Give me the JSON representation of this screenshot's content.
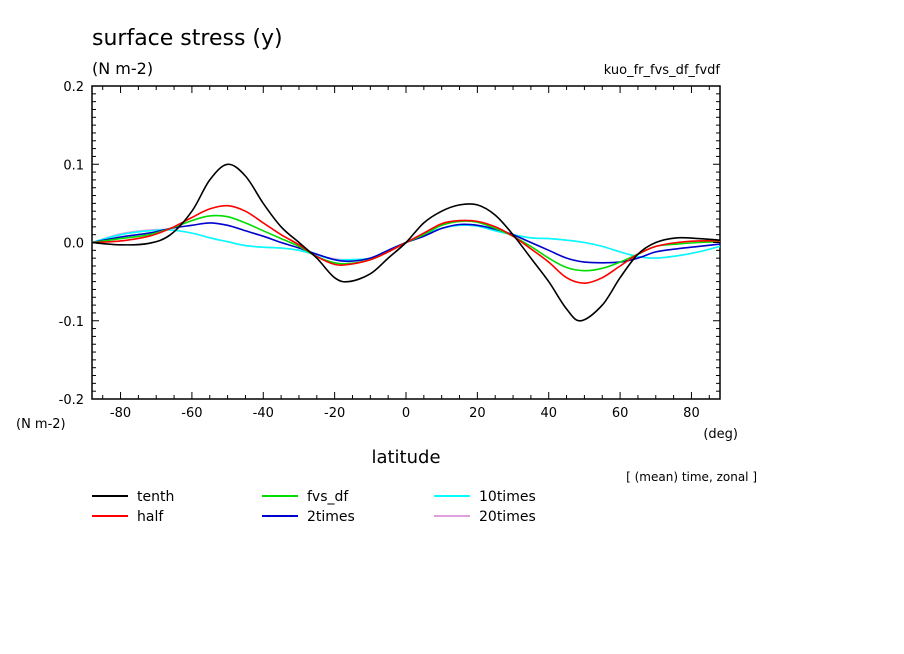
{
  "chart_data": {
    "type": "line",
    "title": "surface stress (y)",
    "units_label": "(N m-2)",
    "ylabel": "(N m-2)",
    "experiment": "kuo_fr_fvs_df_fvdf",
    "xlabel": "latitude",
    "xunits": "(deg)",
    "note": "[ (mean) time, zonal ]",
    "xlim": [
      -88,
      88
    ],
    "ylim": [
      -0.2,
      0.2
    ],
    "xticks": [
      -80,
      -60,
      -40,
      -20,
      0,
      20,
      40,
      60,
      80
    ],
    "yticks": [
      -0.2,
      -0.1,
      0.0,
      0.1,
      0.2
    ],
    "ytick_labels": [
      "-0.2",
      "-0.1",
      "0.0",
      "0.1",
      "0.2"
    ],
    "grid": false,
    "legend_position": "bottom",
    "series": [
      {
        "name": "tenth",
        "color": "#000000",
        "x": [
          -88,
          -80,
          -72,
          -66,
          -60,
          -55,
          -50,
          -45,
          -40,
          -35,
          -30,
          -25,
          -20,
          -16,
          -10,
          -5,
          0,
          5,
          10,
          15,
          20,
          25,
          30,
          35,
          40,
          45,
          49,
          55,
          60,
          65,
          70,
          76,
          82,
          88
        ],
        "y": [
          0.0,
          -0.003,
          -0.001,
          0.01,
          0.04,
          0.08,
          0.1,
          0.085,
          0.05,
          0.02,
          0.0,
          -0.02,
          -0.045,
          -0.05,
          -0.04,
          -0.02,
          0.0,
          0.025,
          0.04,
          0.048,
          0.048,
          0.035,
          0.01,
          -0.02,
          -0.05,
          -0.085,
          -0.1,
          -0.08,
          -0.045,
          -0.015,
          0.0,
          0.006,
          0.005,
          0.003
        ]
      },
      {
        "name": "half",
        "color": "#ff0000",
        "x": [
          -88,
          -80,
          -72,
          -66,
          -60,
          -55,
          -50,
          -45,
          -40,
          -35,
          -30,
          -25,
          -20,
          -16,
          -10,
          -5,
          0,
          5,
          10,
          15,
          20,
          25,
          30,
          35,
          40,
          45,
          50,
          55,
          60,
          65,
          70,
          76,
          82,
          88
        ],
        "y": [
          0.0,
          0.002,
          0.008,
          0.018,
          0.032,
          0.043,
          0.047,
          0.04,
          0.025,
          0.01,
          -0.003,
          -0.018,
          -0.028,
          -0.028,
          -0.022,
          -0.012,
          0.0,
          0.012,
          0.024,
          0.028,
          0.027,
          0.02,
          0.008,
          -0.008,
          -0.025,
          -0.045,
          -0.052,
          -0.045,
          -0.03,
          -0.015,
          -0.005,
          0.0,
          0.002,
          0.002
        ]
      },
      {
        "name": "fvs_df",
        "color": "#00dd00",
        "x": [
          -88,
          -80,
          -72,
          -66,
          -60,
          -55,
          -50,
          -45,
          -40,
          -35,
          -30,
          -25,
          -20,
          -16,
          -10,
          -5,
          0,
          5,
          10,
          15,
          20,
          25,
          30,
          35,
          40,
          45,
          50,
          55,
          60,
          65,
          70,
          76,
          82,
          88
        ],
        "y": [
          0.0,
          0.005,
          0.01,
          0.018,
          0.028,
          0.034,
          0.033,
          0.025,
          0.015,
          0.005,
          -0.005,
          -0.018,
          -0.026,
          -0.027,
          -0.022,
          -0.012,
          0.0,
          0.01,
          0.022,
          0.027,
          0.026,
          0.018,
          0.008,
          -0.005,
          -0.02,
          -0.032,
          -0.036,
          -0.033,
          -0.025,
          -0.015,
          -0.005,
          -0.002,
          0.0,
          0.001
        ]
      },
      {
        "name": "2times",
        "color": "#0000cc",
        "x": [
          -88,
          -80,
          -72,
          -66,
          -60,
          -55,
          -50,
          -45,
          -40,
          -35,
          -30,
          -25,
          -20,
          -16,
          -10,
          -5,
          0,
          5,
          10,
          15,
          20,
          25,
          30,
          35,
          40,
          45,
          50,
          55,
          60,
          65,
          70,
          76,
          82,
          88
        ],
        "y": [
          0.0,
          0.007,
          0.012,
          0.018,
          0.022,
          0.025,
          0.022,
          0.015,
          0.008,
          0.0,
          -0.007,
          -0.015,
          -0.022,
          -0.024,
          -0.02,
          -0.01,
          0.0,
          0.008,
          0.018,
          0.023,
          0.022,
          0.017,
          0.01,
          0.0,
          -0.01,
          -0.02,
          -0.025,
          -0.026,
          -0.025,
          -0.02,
          -0.012,
          -0.008,
          -0.005,
          -0.002
        ]
      },
      {
        "name": "10times",
        "color": "#00ffff",
        "x": [
          -88,
          -80,
          -72,
          -66,
          -60,
          -55,
          -50,
          -45,
          -40,
          -35,
          -30,
          -25,
          -20,
          -16,
          -10,
          -5,
          0,
          5,
          10,
          15,
          20,
          25,
          30,
          35,
          40,
          45,
          50,
          55,
          60,
          65,
          70,
          76,
          82,
          88
        ],
        "y": [
          0.0,
          0.01,
          0.015,
          0.016,
          0.012,
          0.006,
          0.001,
          -0.004,
          -0.006,
          -0.007,
          -0.01,
          -0.016,
          -0.022,
          -0.022,
          -0.02,
          -0.01,
          0.0,
          0.01,
          0.018,
          0.022,
          0.021,
          0.015,
          0.01,
          0.006,
          0.005,
          0.003,
          0.0,
          -0.005,
          -0.012,
          -0.018,
          -0.02,
          -0.017,
          -0.012,
          -0.005
        ]
      },
      {
        "name": "20times",
        "color": "#e0a0e0",
        "x": [
          -88,
          -80,
          -72,
          -66,
          -60,
          -55,
          -50,
          -45,
          -40,
          -35,
          -30,
          -25,
          -20,
          -16,
          -10,
          -5,
          0,
          5,
          10,
          15,
          20,
          25,
          30,
          35,
          40,
          45,
          50,
          55,
          60,
          65,
          70,
          76,
          82,
          88
        ],
        "y": [
          0.0,
          0.011,
          0.016,
          0.016,
          0.012,
          0.006,
          0.001,
          -0.004,
          -0.006,
          -0.007,
          -0.01,
          -0.016,
          -0.021,
          -0.022,
          -0.02,
          -0.01,
          0.0,
          0.01,
          0.018,
          0.022,
          0.021,
          0.015,
          0.01,
          0.006,
          0.005,
          0.003,
          0.0,
          -0.005,
          -0.012,
          -0.018,
          -0.02,
          -0.017,
          -0.012,
          -0.005
        ]
      }
    ]
  }
}
